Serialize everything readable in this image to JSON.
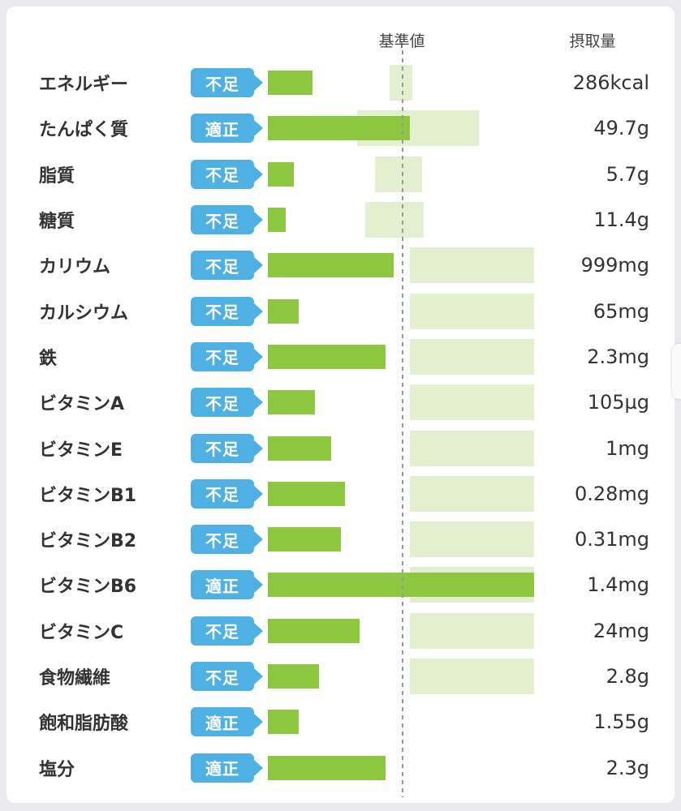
{
  "header": {
    "reference_label": "基準値",
    "intake_label": "摂取量"
  },
  "colors": {
    "bar_green": "#8dc63f",
    "band_green": "#e2f0cf",
    "badge_blue": "#4fb1e3",
    "text": "#333333",
    "page_bg": "#e9e9ee",
    "dash_gray": "#999999"
  },
  "chart_data": {
    "type": "bar",
    "title": "",
    "xlabel": "",
    "ylabel": "",
    "legend": [
      "基準値",
      "摂取量"
    ],
    "reference_line_pct": 50.3,
    "rows": [
      {
        "label": "エネルギー",
        "status": "不足",
        "intake": "286kcal",
        "bar_pct": 16.8,
        "band_start_pct": 45.7,
        "band_width_pct": 8.5
      },
      {
        "label": "たんぱく質",
        "status": "適正",
        "intake": "49.7g",
        "bar_pct": 53.4,
        "band_start_pct": 33.5,
        "band_width_pct": 45.7
      },
      {
        "label": "脂質",
        "status": "不足",
        "intake": "5.7g",
        "bar_pct": 9.8,
        "band_start_pct": 40.2,
        "band_width_pct": 17.7
      },
      {
        "label": "糖質",
        "status": "不足",
        "intake": "11.4g",
        "bar_pct": 6.7,
        "band_start_pct": 36.6,
        "band_width_pct": 22.0
      },
      {
        "label": "カリウム",
        "status": "不足",
        "intake": "999mg",
        "bar_pct": 47.3,
        "band_start_pct": 53.4,
        "band_width_pct": 46.6
      },
      {
        "label": "カルシウム",
        "status": "不足",
        "intake": "65mg",
        "bar_pct": 11.6,
        "band_start_pct": 53.4,
        "band_width_pct": 46.6
      },
      {
        "label": "鉄",
        "status": "不足",
        "intake": "2.3mg",
        "bar_pct": 44.2,
        "band_start_pct": 53.4,
        "band_width_pct": 46.6
      },
      {
        "label": "ビタミンA",
        "status": "不足",
        "intake": "105µg",
        "bar_pct": 17.7,
        "band_start_pct": 53.4,
        "band_width_pct": 46.6
      },
      {
        "label": "ビタミンE",
        "status": "不足",
        "intake": "1mg",
        "bar_pct": 23.8,
        "band_start_pct": 53.4,
        "band_width_pct": 46.6
      },
      {
        "label": "ビタミンB1",
        "status": "不足",
        "intake": "0.28mg",
        "bar_pct": 29.0,
        "band_start_pct": 53.4,
        "band_width_pct": 46.6
      },
      {
        "label": "ビタミンB2",
        "status": "不足",
        "intake": "0.31mg",
        "bar_pct": 27.4,
        "band_start_pct": 53.4,
        "band_width_pct": 46.6
      },
      {
        "label": "ビタミンB6",
        "status": "適正",
        "intake": "1.4mg",
        "bar_pct": 100,
        "band_start_pct": 53.4,
        "band_width_pct": 46.6
      },
      {
        "label": "ビタミンC",
        "status": "不足",
        "intake": "24mg",
        "bar_pct": 34.5,
        "band_start_pct": 53.4,
        "band_width_pct": 46.6
      },
      {
        "label": "食物繊維",
        "status": "不足",
        "intake": "2.8g",
        "bar_pct": 19.2,
        "band_start_pct": 53.4,
        "band_width_pct": 46.6
      },
      {
        "label": "飽和脂肪酸",
        "status": "適正",
        "intake": "1.55g",
        "bar_pct": 11.6,
        "band_start_pct": null,
        "band_width_pct": null
      },
      {
        "label": "塩分",
        "status": "適正",
        "intake": "2.3g",
        "bar_pct": 44.2,
        "band_start_pct": null,
        "band_width_pct": null
      }
    ]
  }
}
